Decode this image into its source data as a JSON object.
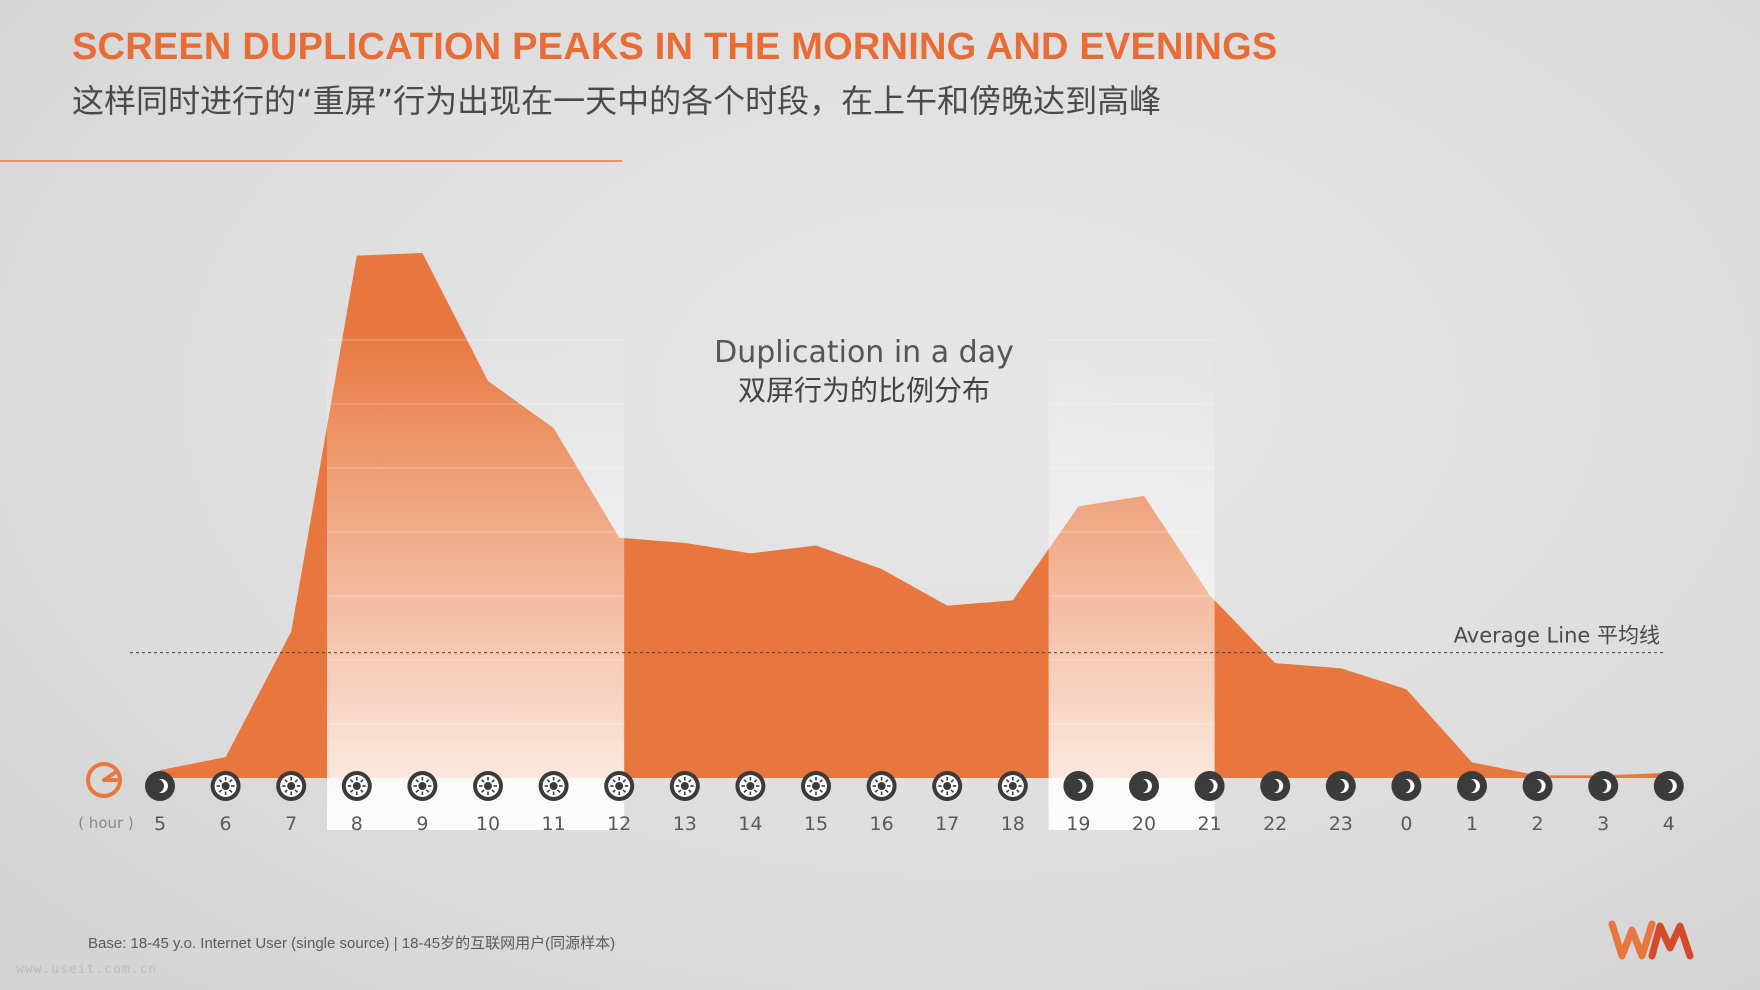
{
  "header": {
    "title_en": "SCREEN DUPLICATION PEAKS IN THE MORNING AND EVENINGS",
    "title_cn": "这样同时进行的“重屏”行为出现在一天中的各个时段，在上午和傍晚达到高峰"
  },
  "colors": {
    "accent": "#e8773f",
    "title": "#e86c36",
    "icon_bg": "#3b3b3b"
  },
  "chart_data": {
    "type": "area",
    "title": "Duplication in a day",
    "subtitle": "双屏行为的比例分布",
    "x_unit_label": "( hour )",
    "categories": [
      "5",
      "6",
      "7",
      "8",
      "9",
      "10",
      "11",
      "12",
      "13",
      "14",
      "15",
      "16",
      "17",
      "18",
      "19",
      "20",
      "21",
      "22",
      "23",
      "0",
      "1",
      "2",
      "3",
      "4"
    ],
    "period_icons": [
      "moon-icon",
      "sun-icon",
      "sun-icon",
      "sun-icon",
      "sun-icon",
      "sun-icon",
      "sun-icon",
      "sun-icon",
      "sun-icon",
      "sun-icon",
      "sun-icon",
      "sun-icon",
      "sun-icon",
      "sun-icon",
      "moon-icon",
      "moon-icon",
      "moon-icon",
      "moon-icon",
      "moon-icon",
      "moon-icon",
      "moon-icon",
      "moon-icon",
      "moon-icon",
      "moon-icon"
    ],
    "values": [
      1.5,
      4,
      28,
      100,
      100.5,
      76,
      67,
      46,
      45,
      43,
      44.5,
      40,
      33,
      34,
      52,
      54,
      35,
      22,
      21,
      17,
      3,
      0.5,
      0.5,
      1
    ],
    "ylim": [
      0,
      105
    ],
    "average": 24,
    "average_label": "Average Line 平均线",
    "highlight_ranges": [
      {
        "from": "8",
        "to": "12"
      },
      {
        "from": "19",
        "to": "21"
      }
    ]
  },
  "footer": {
    "base_note": "Base: 18-45 y.o. Internet User (single source) | 18-45岁的互联网用户(同源样本)",
    "watermark": "www.useit.com.cn"
  }
}
